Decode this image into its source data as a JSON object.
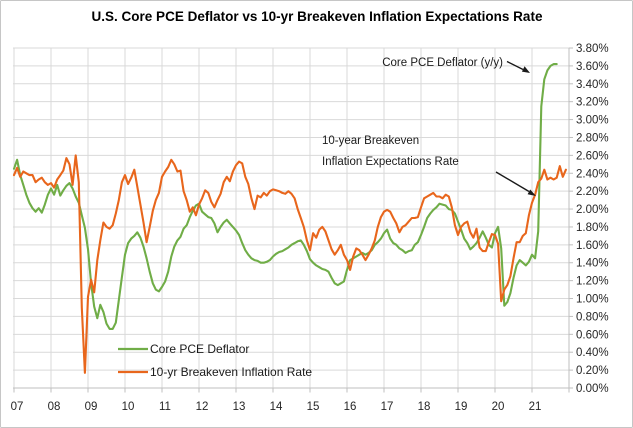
{
  "title": "U.S. Core PCE Deflator vs 10-yr Breakeven Inflation Expectations Rate",
  "annotations": {
    "core_pce": "Core PCE Deflator (y/y)",
    "breakeven_line1": "10-year Breakeven",
    "breakeven_line2": "Inflation Expectations Rate"
  },
  "chart_data": {
    "type": "line",
    "title": "U.S. Core PCE Deflator vs 10-yr Breakeven Inflation Expectations Rate",
    "x_start": "2007-01",
    "x_frequency": "monthly",
    "x_tick_labels": [
      "07",
      "08",
      "09",
      "10",
      "11",
      "12",
      "13",
      "14",
      "15",
      "16",
      "17",
      "18",
      "19",
      "20",
      "21"
    ],
    "y_axis": {
      "min": 0.0,
      "max": 3.8,
      "step": 0.2,
      "format": "percent",
      "side": "right",
      "tick_labels": [
        "0.00%",
        "0.20%",
        "0.40%",
        "0.60%",
        "0.80%",
        "1.00%",
        "1.20%",
        "1.40%",
        "1.60%",
        "1.80%",
        "2.00%",
        "2.20%",
        "2.40%",
        "2.60%",
        "2.80%",
        "3.00%",
        "3.20%",
        "3.40%",
        "3.60%",
        "3.80%"
      ]
    },
    "grid": true,
    "legend_position": "inside-bottom-left",
    "series": [
      {
        "name": "Core PCE Deflator",
        "color": "#70AD47",
        "start": "2007-01",
        "values": [
          2.45,
          2.55,
          2.38,
          2.27,
          2.16,
          2.07,
          2.01,
          1.97,
          2.01,
          1.96,
          2.05,
          2.16,
          2.23,
          2.16,
          2.27,
          2.15,
          2.21,
          2.26,
          2.29,
          2.23,
          2.14,
          2.07,
          1.93,
          1.79,
          1.55,
          1.17,
          0.91,
          0.78,
          0.93,
          0.85,
          0.72,
          0.66,
          0.66,
          0.73,
          0.98,
          1.24,
          1.49,
          1.62,
          1.67,
          1.7,
          1.74,
          1.68,
          1.58,
          1.45,
          1.3,
          1.17,
          1.1,
          1.08,
          1.13,
          1.19,
          1.3,
          1.47,
          1.58,
          1.65,
          1.69,
          1.78,
          1.82,
          1.91,
          1.98,
          2.04,
          2.06,
          1.97,
          1.94,
          1.91,
          1.9,
          1.84,
          1.74,
          1.8,
          1.85,
          1.88,
          1.84,
          1.8,
          1.76,
          1.71,
          1.62,
          1.54,
          1.49,
          1.45,
          1.43,
          1.42,
          1.4,
          1.4,
          1.41,
          1.43,
          1.47,
          1.5,
          1.52,
          1.53,
          1.55,
          1.57,
          1.6,
          1.62,
          1.64,
          1.65,
          1.6,
          1.53,
          1.44,
          1.4,
          1.37,
          1.35,
          1.33,
          1.32,
          1.3,
          1.23,
          1.17,
          1.15,
          1.17,
          1.19,
          1.32,
          1.43,
          1.45,
          1.47,
          1.49,
          1.51,
          1.49,
          1.51,
          1.54,
          1.6,
          1.63,
          1.67,
          1.73,
          1.77,
          1.67,
          1.62,
          1.6,
          1.56,
          1.54,
          1.51,
          1.53,
          1.54,
          1.6,
          1.63,
          1.71,
          1.8,
          1.9,
          1.95,
          1.99,
          2.02,
          2.06,
          2.05,
          2.04,
          2.0,
          1.99,
          1.95,
          1.86,
          1.77,
          1.67,
          1.62,
          1.55,
          1.58,
          1.62,
          1.68,
          1.75,
          1.68,
          1.6,
          1.57,
          1.73,
          1.8,
          1.56,
          0.92,
          0.96,
          1.06,
          1.23,
          1.37,
          1.43,
          1.4,
          1.37,
          1.41,
          1.49,
          1.45,
          1.75,
          3.15,
          3.45,
          3.55,
          3.6,
          3.62,
          3.62
        ]
      },
      {
        "name": "10-yr Breakeven Inflation Rate",
        "color": "#E8661C",
        "start": "2007-01",
        "values": [
          2.38,
          2.46,
          2.36,
          2.42,
          2.4,
          2.38,
          2.38,
          2.3,
          2.33,
          2.35,
          2.3,
          2.27,
          2.29,
          2.24,
          2.33,
          2.38,
          2.43,
          2.57,
          2.5,
          2.27,
          2.6,
          2.3,
          0.9,
          0.17,
          1.02,
          1.21,
          1.07,
          1.43,
          1.65,
          1.85,
          1.8,
          1.78,
          1.82,
          1.95,
          2.1,
          2.3,
          2.38,
          2.28,
          2.35,
          2.44,
          2.25,
          2.05,
          1.85,
          1.63,
          1.8,
          1.98,
          2.1,
          2.18,
          2.36,
          2.42,
          2.47,
          2.55,
          2.5,
          2.42,
          2.43,
          2.2,
          2.1,
          1.97,
          2.02,
          1.93,
          2.05,
          2.12,
          2.21,
          2.18,
          2.08,
          2.02,
          2.1,
          2.17,
          2.3,
          2.36,
          2.31,
          2.42,
          2.49,
          2.53,
          2.51,
          2.36,
          2.28,
          2.12,
          2.0,
          2.15,
          2.13,
          2.18,
          2.15,
          2.2,
          2.22,
          2.21,
          2.2,
          2.18,
          2.17,
          2.2,
          2.17,
          2.12,
          2.0,
          1.9,
          1.8,
          1.65,
          1.54,
          1.73,
          1.68,
          1.77,
          1.8,
          1.75,
          1.65,
          1.55,
          1.49,
          1.54,
          1.6,
          1.49,
          1.43,
          1.32,
          1.47,
          1.56,
          1.54,
          1.49,
          1.43,
          1.49,
          1.56,
          1.65,
          1.8,
          1.91,
          1.97,
          1.99,
          1.97,
          1.9,
          1.84,
          1.74,
          1.8,
          1.82,
          1.86,
          1.9,
          1.9,
          1.91,
          2.02,
          2.12,
          2.14,
          2.16,
          2.18,
          2.14,
          2.14,
          2.12,
          2.16,
          2.14,
          2.02,
          1.82,
          1.71,
          1.8,
          1.84,
          1.86,
          1.74,
          1.68,
          1.78,
          1.57,
          1.53,
          1.53,
          1.63,
          1.72,
          1.71,
          1.61,
          0.97,
          1.1,
          1.15,
          1.25,
          1.45,
          1.63,
          1.63,
          1.7,
          1.73,
          1.93,
          2.07,
          2.16,
          2.3,
          2.34,
          2.44,
          2.33,
          2.35,
          2.33,
          2.35,
          2.48,
          2.36,
          2.44
        ]
      }
    ]
  }
}
